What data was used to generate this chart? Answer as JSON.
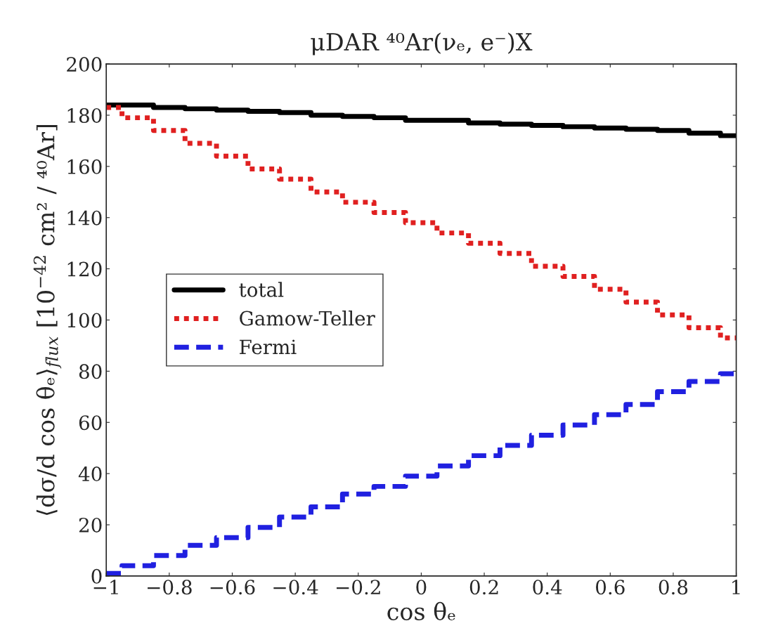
{
  "chart_data": {
    "type": "step",
    "title": "μDAR ⁴⁰Ar(νₑ, e⁻)X",
    "xlabel": "cos θₑ",
    "ylabel": "⟨dσ/d cos θₑ⟩$_{flux}$ [10$^{−42}$ cm² / ⁴⁰Ar]",
    "x": [
      -1,
      -0.9,
      -0.8,
      -0.7,
      -0.6,
      -0.5,
      -0.4,
      -0.3,
      -0.2,
      -0.1,
      0,
      0.1,
      0.2,
      0.3,
      0.4,
      0.5,
      0.6,
      0.7,
      0.8,
      0.9,
      1
    ],
    "series": [
      {
        "name": "total",
        "color": "#000000",
        "line_style": "solid",
        "values": [
          184,
          184,
          183,
          182.5,
          182,
          181.5,
          181,
          180,
          179.5,
          179,
          178,
          178,
          177,
          176.5,
          176,
          175.5,
          175,
          174.5,
          174,
          173,
          172
        ]
      },
      {
        "name": "Gamow-Teller",
        "color": "#e02020",
        "line_style": "dotted",
        "values": [
          183,
          179,
          174,
          169,
          164,
          159,
          155,
          150,
          146,
          142,
          138,
          134,
          130,
          126,
          121,
          117,
          112,
          107,
          102,
          97,
          93
        ]
      },
      {
        "name": "Fermi",
        "color": "#2020e0",
        "line_style": "dashed",
        "values": [
          1,
          4,
          8,
          12,
          15,
          19,
          23,
          27,
          32,
          35,
          39,
          43,
          47,
          51,
          55,
          59,
          63,
          67,
          72,
          76,
          79
        ]
      }
    ],
    "xlim": [
      -1,
      1
    ],
    "ylim": [
      0,
      200
    ],
    "xticks": [
      {
        "value": -1,
        "label": "−1"
      },
      {
        "value": -0.8,
        "label": "−0.8"
      },
      {
        "value": -0.6,
        "label": "−0.6"
      },
      {
        "value": -0.4,
        "label": "−0.4"
      },
      {
        "value": -0.2,
        "label": "−0.2"
      },
      0,
      0.2,
      0.4,
      0.6,
      0.8,
      1
    ],
    "yticks": [
      0,
      20,
      40,
      60,
      80,
      100,
      120,
      140,
      160,
      180,
      200
    ],
    "legend": "center left",
    "grid": false
  }
}
